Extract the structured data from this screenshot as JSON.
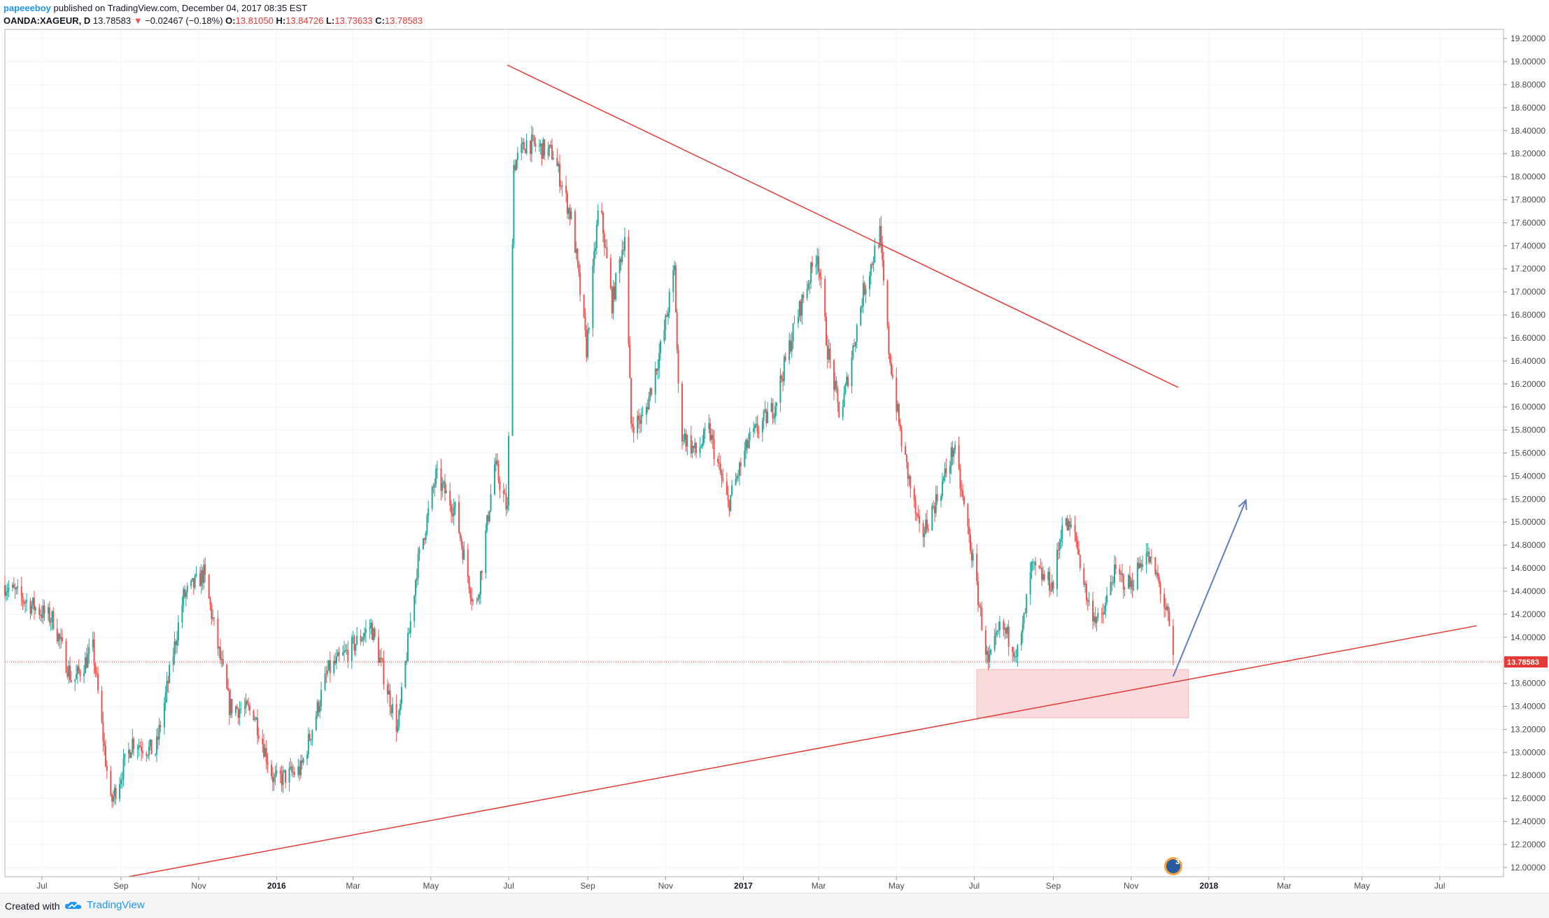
{
  "header": {
    "author": "papeeeboy",
    "published_text": " published on TradingView.com, December 04, 2017 08:35 EST",
    "symbol": "OANDA:XAGEUR, D",
    "last": "13.78583",
    "change": "−0.02467 (−0.18%)",
    "open_label": "O:",
    "open": "13.81050",
    "high_label": "H:",
    "high": "13.84726",
    "low_label": "L:",
    "low": "13.73633",
    "close_label": "C:",
    "close": "13.78583"
  },
  "footer": {
    "created_with": "Created with",
    "brand": "TradingView"
  },
  "event_badge": "3",
  "colors": {
    "up": "#26a69a",
    "down": "#ef5350",
    "trendline": "#e53935",
    "arrow": "#5b7fc4",
    "zone": "#f8d7d8",
    "grid": "#f0f3fa"
  },
  "chart_data": {
    "type": "candlestick",
    "symbol": "OANDA:XAGEUR",
    "interval": "D",
    "current_price": 13.78583,
    "current_price_label": "13.78583",
    "ylim": [
      11.92,
      19.28
    ],
    "y_ticks": [
      "19.20000",
      "19.00000",
      "18.80000",
      "18.60000",
      "18.40000",
      "18.20000",
      "18.00000",
      "17.80000",
      "17.60000",
      "17.40000",
      "17.20000",
      "17.00000",
      "16.80000",
      "16.60000",
      "16.40000",
      "16.20000",
      "16.00000",
      "15.80000",
      "15.60000",
      "15.40000",
      "15.20000",
      "15.00000",
      "14.80000",
      "14.60000",
      "14.40000",
      "14.20000",
      "14.00000",
      "13.80000",
      "13.60000",
      "13.40000",
      "13.20000",
      "13.00000",
      "12.80000",
      "12.60000",
      "12.40000",
      "12.20000",
      "12.00000"
    ],
    "x_ticks": [
      "Jul",
      "Sep",
      "Nov",
      "2016",
      "Mar",
      "May",
      "Jul",
      "Sep",
      "Nov",
      "2017",
      "Mar",
      "May",
      "Jul",
      "Sep",
      "Nov",
      "2018",
      "Mar",
      "May",
      "Jul"
    ],
    "x_ticks_bold": [
      "2016",
      "2017",
      "2018"
    ],
    "x_range": [
      "2015-06-02",
      "2018-08-20"
    ],
    "anchors": [
      [
        "2015-06-02",
        14.45
      ],
      [
        "2015-06-20",
        14.3
      ],
      [
        "2015-07-10",
        14.15
      ],
      [
        "2015-07-25",
        13.6
      ],
      [
        "2015-08-10",
        13.9
      ],
      [
        "2015-08-24",
        12.55
      ],
      [
        "2015-09-10",
        13.1
      ],
      [
        "2015-09-28",
        13.0
      ],
      [
        "2015-10-20",
        14.35
      ],
      [
        "2015-11-05",
        14.55
      ],
      [
        "2015-11-25",
        13.4
      ],
      [
        "2015-12-14",
        13.35
      ],
      [
        "2015-12-30",
        12.75
      ],
      [
        "2016-01-20",
        12.85
      ],
      [
        "2016-02-10",
        13.7
      ],
      [
        "2016-02-28",
        13.9
      ],
      [
        "2016-03-15",
        14.1
      ],
      [
        "2016-04-05",
        13.2
      ],
      [
        "2016-04-20",
        14.6
      ],
      [
        "2016-05-05",
        15.4
      ],
      [
        "2016-05-20",
        15.1
      ],
      [
        "2016-06-05",
        14.2
      ],
      [
        "2016-06-20",
        15.5
      ],
      [
        "2016-06-30",
        15.1
      ],
      [
        "2016-07-05",
        18.1
      ],
      [
        "2016-07-15",
        18.3
      ],
      [
        "2016-08-05",
        18.2
      ],
      [
        "2016-08-20",
        17.6
      ],
      [
        "2016-08-31",
        16.5
      ],
      [
        "2016-09-10",
        17.8
      ],
      [
        "2016-09-20",
        16.9
      ],
      [
        "2016-09-30",
        17.5
      ],
      [
        "2016-10-05",
        15.85
      ],
      [
        "2016-10-15",
        15.9
      ],
      [
        "2016-10-30",
        16.6
      ],
      [
        "2016-11-08",
        17.2
      ],
      [
        "2016-11-12",
        15.8
      ],
      [
        "2016-11-25",
        15.6
      ],
      [
        "2016-12-05",
        15.8
      ],
      [
        "2016-12-20",
        15.15
      ],
      [
        "2017-01-05",
        15.7
      ],
      [
        "2017-01-25",
        16.0
      ],
      [
        "2017-02-10",
        16.7
      ],
      [
        "2017-02-28",
        17.35
      ],
      [
        "2017-03-08",
        16.5
      ],
      [
        "2017-03-18",
        15.9
      ],
      [
        "2017-04-05",
        17.0
      ],
      [
        "2017-04-18",
        17.5
      ],
      [
        "2017-04-25",
        16.5
      ],
      [
        "2017-05-05",
        15.7
      ],
      [
        "2017-05-20",
        14.85
      ],
      [
        "2017-06-05",
        15.3
      ],
      [
        "2017-06-15",
        15.65
      ],
      [
        "2017-06-28",
        14.8
      ],
      [
        "2017-07-12",
        13.75
      ],
      [
        "2017-07-22",
        14.1
      ],
      [
        "2017-08-05",
        13.85
      ],
      [
        "2017-08-15",
        14.6
      ],
      [
        "2017-09-01",
        14.45
      ],
      [
        "2017-09-08",
        15.0
      ],
      [
        "2017-09-18",
        14.9
      ],
      [
        "2017-09-28",
        14.3
      ],
      [
        "2017-10-08",
        14.1
      ],
      [
        "2017-10-18",
        14.55
      ],
      [
        "2017-11-01",
        14.45
      ],
      [
        "2017-11-12",
        14.75
      ],
      [
        "2017-11-22",
        14.5
      ],
      [
        "2017-11-30",
        14.15
      ],
      [
        "2017-12-04",
        13.79
      ]
    ],
    "annotations": {
      "descending_trendline": [
        [
          "2016-06-30",
          18.97
        ],
        [
          "2017-12-08",
          16.17
        ]
      ],
      "ascending_trendline": [
        [
          "2015-09-07",
          11.92
        ],
        [
          "2018-07-30",
          14.1
        ]
      ],
      "support_zone": {
        "from": "2017-07-03",
        "to": "2017-12-16",
        "top": 13.72,
        "bottom": 13.3
      },
      "projection_arrow": [
        [
          "2017-12-04",
          13.66
        ],
        [
          "2018-01-30",
          15.19
        ]
      ]
    }
  }
}
